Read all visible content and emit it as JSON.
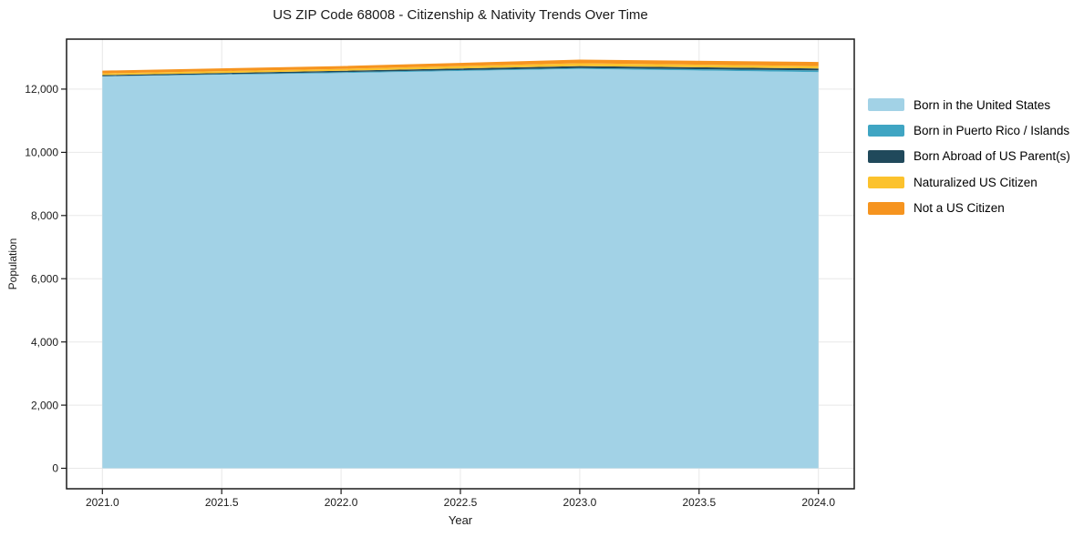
{
  "chart_data": {
    "type": "area",
    "title": "US ZIP Code 68008 - Citizenship & Nativity Trends Over Time",
    "xlabel": "Year",
    "ylabel": "Population",
    "x": [
      2021,
      2022,
      2023,
      2024
    ],
    "series": [
      {
        "name": "Born in the United States",
        "color": "#a2d2e6",
        "values": [
          12400,
          12510,
          12640,
          12540
        ]
      },
      {
        "name": "Born in Puerto Rico / Islands",
        "color": "#3fa5c3",
        "values": [
          10,
          25,
          30,
          55
        ]
      },
      {
        "name": "Born Abroad of US Parent(s)",
        "color": "#20495b",
        "values": [
          35,
          45,
          60,
          60
        ]
      },
      {
        "name": "Naturalized US Citizen",
        "color": "#fcc22d",
        "values": [
          55,
          60,
          90,
          75
        ]
      },
      {
        "name": "Not a US Citizen",
        "color": "#f6941f",
        "values": [
          85,
          90,
          115,
          130
        ]
      }
    ],
    "xlim": [
      2020.85,
      2024.15
    ],
    "ylim": [
      -647,
      13582
    ],
    "xtick_values": [
      2021.0,
      2021.5,
      2022.0,
      2022.5,
      2023.0,
      2023.5,
      2024.0
    ],
    "xtick_labels": [
      "2021.0",
      "2021.5",
      "2022.0",
      "2022.5",
      "2023.0",
      "2023.5",
      "2024.0"
    ],
    "ytick_values": [
      0,
      2000,
      4000,
      6000,
      8000,
      10000,
      12000
    ],
    "ytick_labels": [
      "0",
      "2,000",
      "4,000",
      "6,000",
      "8,000",
      "10,000",
      "12,000"
    ],
    "grid": true,
    "legend_position": "right-outside",
    "colors": {
      "frame": "#1a1a1a",
      "grid": "#e8e8e8",
      "background": "#ffffff"
    }
  }
}
